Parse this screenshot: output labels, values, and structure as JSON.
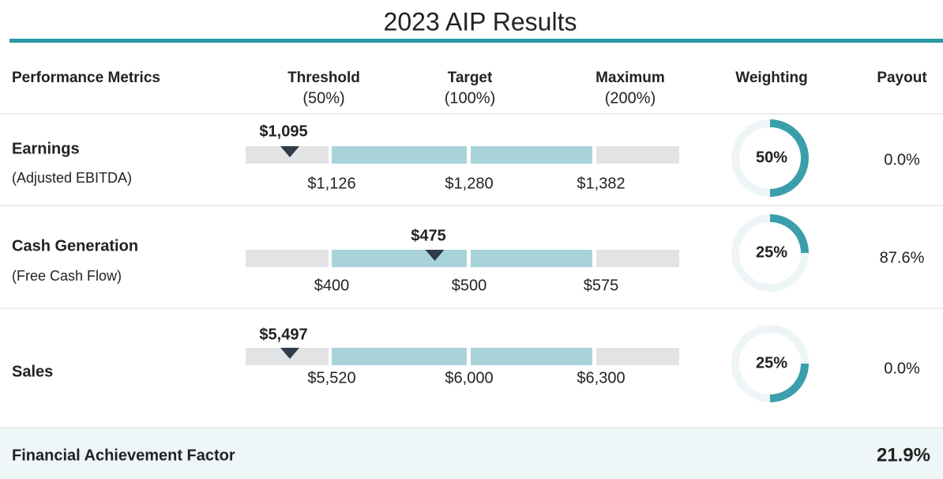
{
  "title": "2023 AIP Results",
  "headers": {
    "metrics": "Performance Metrics",
    "threshold": "Threshold",
    "threshold_pct": "(50%)",
    "target": "Target",
    "target_pct": "(100%)",
    "maximum": "Maximum",
    "maximum_pct": "(200%)",
    "weighting": "Weighting",
    "payout": "Payout"
  },
  "rows": [
    {
      "name": "Earnings",
      "subname": "(Adjusted EBITDA)",
      "actual": {
        "value": 1095,
        "label": "$1,095"
      },
      "threshold": {
        "value": 1126,
        "label": "$1,126"
      },
      "target": {
        "value": 1280,
        "label": "$1,280"
      },
      "maximum": {
        "value": 1382,
        "label": "$1,382"
      },
      "weighting": {
        "value": 50,
        "label": "50%"
      },
      "payout": "0.0%"
    },
    {
      "name": "Cash Generation",
      "subname": "(Free Cash Flow)",
      "actual": {
        "value": 475,
        "label": "$475"
      },
      "threshold": {
        "value": 400,
        "label": "$400"
      },
      "target": {
        "value": 500,
        "label": "$500"
      },
      "maximum": {
        "value": 575,
        "label": "$575"
      },
      "weighting": {
        "value": 25,
        "label": "25%"
      },
      "payout": "87.6%"
    },
    {
      "name": "Sales",
      "actual": {
        "value": 5497,
        "label": "$5,497"
      },
      "threshold": {
        "value": 5520,
        "label": "$5,520"
      },
      "target": {
        "value": 6000,
        "label": "$6,000"
      },
      "maximum": {
        "value": 6300,
        "label": "$6,300"
      },
      "weighting": {
        "value": 25,
        "label": "25%"
      },
      "payout": "0.0%"
    }
  ],
  "footer": {
    "label": "Financial Achievement Factor",
    "value": "21.9%"
  }
}
